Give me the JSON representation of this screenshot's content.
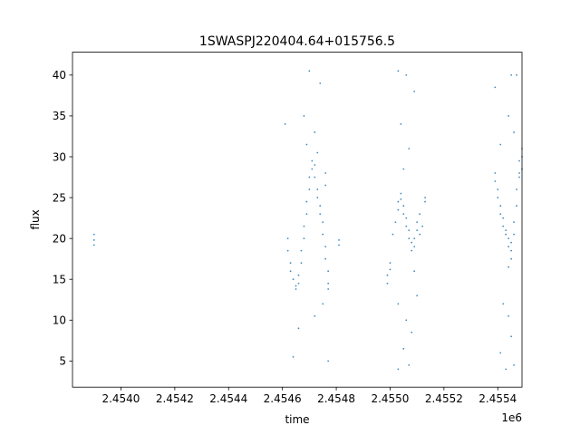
{
  "chart_data": {
    "type": "scatter",
    "title": "1SWASPJ220404.64+015756.5",
    "xlabel": "time",
    "ylabel": "flux",
    "x_offset_label": "1e6",
    "x_scale": 1000000,
    "xlim": [
      2.45382,
      2.45549
    ],
    "ylim": [
      1.8,
      42.8
    ],
    "x_ticks": [
      2.454,
      2.4542,
      2.4544,
      2.4546,
      2.4548,
      2.455,
      2.4552,
      2.4554
    ],
    "x_tick_labels": [
      "2.4540",
      "2.4542",
      "2.4544",
      "2.4546",
      "2.4548",
      "2.4550",
      "2.4552",
      "2.4554"
    ],
    "y_ticks": [
      5,
      10,
      15,
      20,
      25,
      30,
      35,
      40
    ],
    "y_tick_labels": [
      "5",
      "10",
      "15",
      "20",
      "25",
      "30",
      "35",
      "40"
    ],
    "grid": false,
    "legend": "none",
    "marker_color": "#1f77b4",
    "series": [
      {
        "points": [
          {
            "x": 2.4539,
            "y": 20.5
          },
          {
            "x": 2.4539,
            "y": 19.2
          },
          {
            "x": 2.4539,
            "y": 19.8
          },
          {
            "x": 2.45462,
            "y": 20.0
          },
          {
            "x": 2.45462,
            "y": 18.5
          },
          {
            "x": 2.45463,
            "y": 17.0
          },
          {
            "x": 2.45463,
            "y": 16.0
          },
          {
            "x": 2.45464,
            "y": 15.0
          },
          {
            "x": 2.45465,
            "y": 14.2
          },
          {
            "x": 2.45465,
            "y": 13.8
          },
          {
            "x": 2.45466,
            "y": 14.5
          },
          {
            "x": 2.45466,
            "y": 15.5
          },
          {
            "x": 2.45467,
            "y": 17.0
          },
          {
            "x": 2.45467,
            "y": 18.5
          },
          {
            "x": 2.45468,
            "y": 20.0
          },
          {
            "x": 2.45468,
            "y": 21.5
          },
          {
            "x": 2.45469,
            "y": 23.0
          },
          {
            "x": 2.45469,
            "y": 24.5
          },
          {
            "x": 2.4547,
            "y": 26.0
          },
          {
            "x": 2.4547,
            "y": 27.5
          },
          {
            "x": 2.45471,
            "y": 28.5
          },
          {
            "x": 2.45471,
            "y": 29.5
          },
          {
            "x": 2.45472,
            "y": 29.0
          },
          {
            "x": 2.45472,
            "y": 27.5
          },
          {
            "x": 2.45473,
            "y": 26.0
          },
          {
            "x": 2.45473,
            "y": 25.0
          },
          {
            "x": 2.45474,
            "y": 24.0
          },
          {
            "x": 2.45474,
            "y": 23.0
          },
          {
            "x": 2.45475,
            "y": 22.0
          },
          {
            "x": 2.45475,
            "y": 20.5
          },
          {
            "x": 2.45476,
            "y": 19.0
          },
          {
            "x": 2.45476,
            "y": 17.5
          },
          {
            "x": 2.45477,
            "y": 16.0
          },
          {
            "x": 2.45477,
            "y": 14.5
          },
          {
            "x": 2.45477,
            "y": 13.8
          },
          {
            "x": 2.45476,
            "y": 28.0
          },
          {
            "x": 2.45476,
            "y": 26.5
          },
          {
            "x": 2.45481,
            "y": 19.8
          },
          {
            "x": 2.45481,
            "y": 19.2
          },
          {
            "x": 2.4547,
            "y": 40.5
          },
          {
            "x": 2.45474,
            "y": 39.0
          },
          {
            "x": 2.45468,
            "y": 35.0
          },
          {
            "x": 2.45472,
            "y": 33.0
          },
          {
            "x": 2.45461,
            "y": 34.0
          },
          {
            "x": 2.45466,
            "y": 9.0
          },
          {
            "x": 2.45472,
            "y": 10.5
          },
          {
            "x": 2.45475,
            "y": 12.0
          },
          {
            "x": 2.45464,
            "y": 5.5
          },
          {
            "x": 2.45477,
            "y": 5.0
          },
          {
            "x": 2.45469,
            "y": 31.5
          },
          {
            "x": 2.45473,
            "y": 30.5
          },
          {
            "x": 2.45499,
            "y": 15.5
          },
          {
            "x": 2.45499,
            "y": 14.5
          },
          {
            "x": 2.455,
            "y": 17.0
          },
          {
            "x": 2.455,
            "y": 16.2
          },
          {
            "x": 2.45501,
            "y": 20.5
          },
          {
            "x": 2.45502,
            "y": 22.0
          },
          {
            "x": 2.45503,
            "y": 23.5
          },
          {
            "x": 2.45503,
            "y": 24.5
          },
          {
            "x": 2.45504,
            "y": 25.5
          },
          {
            "x": 2.45504,
            "y": 24.8
          },
          {
            "x": 2.45505,
            "y": 24.0
          },
          {
            "x": 2.45505,
            "y": 23.0
          },
          {
            "x": 2.45506,
            "y": 22.5
          },
          {
            "x": 2.45506,
            "y": 21.5
          },
          {
            "x": 2.45507,
            "y": 21.0
          },
          {
            "x": 2.45507,
            "y": 20.0
          },
          {
            "x": 2.45508,
            "y": 19.5
          },
          {
            "x": 2.45508,
            "y": 18.5
          },
          {
            "x": 2.45509,
            "y": 19.0
          },
          {
            "x": 2.45509,
            "y": 20.0
          },
          {
            "x": 2.4551,
            "y": 21.0
          },
          {
            "x": 2.4551,
            "y": 22.0
          },
          {
            "x": 2.45511,
            "y": 23.0
          },
          {
            "x": 2.45511,
            "y": 20.5
          },
          {
            "x": 2.45512,
            "y": 21.5
          },
          {
            "x": 2.45513,
            "y": 24.5
          },
          {
            "x": 2.45513,
            "y": 25.0
          },
          {
            "x": 2.45503,
            "y": 40.5
          },
          {
            "x": 2.45506,
            "y": 40.0
          },
          {
            "x": 2.45509,
            "y": 38.0
          },
          {
            "x": 2.45504,
            "y": 34.0
          },
          {
            "x": 2.45507,
            "y": 31.0
          },
          {
            "x": 2.45505,
            "y": 28.5
          },
          {
            "x": 2.45503,
            "y": 12.0
          },
          {
            "x": 2.45506,
            "y": 10.0
          },
          {
            "x": 2.45508,
            "y": 8.5
          },
          {
            "x": 2.45505,
            "y": 6.5
          },
          {
            "x": 2.45503,
            "y": 4.0
          },
          {
            "x": 2.45507,
            "y": 4.5
          },
          {
            "x": 2.4551,
            "y": 13.0
          },
          {
            "x": 2.45509,
            "y": 16.0
          },
          {
            "x": 2.45539,
            "y": 28.0
          },
          {
            "x": 2.45539,
            "y": 27.0
          },
          {
            "x": 2.4554,
            "y": 26.0
          },
          {
            "x": 2.4554,
            "y": 25.0
          },
          {
            "x": 2.45541,
            "y": 24.0
          },
          {
            "x": 2.45541,
            "y": 23.0
          },
          {
            "x": 2.45542,
            "y": 22.5
          },
          {
            "x": 2.45542,
            "y": 21.5
          },
          {
            "x": 2.45543,
            "y": 21.0
          },
          {
            "x": 2.45543,
            "y": 20.5
          },
          {
            "x": 2.45544,
            "y": 20.0
          },
          {
            "x": 2.45544,
            "y": 19.0
          },
          {
            "x": 2.45545,
            "y": 18.5
          },
          {
            "x": 2.45545,
            "y": 19.5
          },
          {
            "x": 2.45546,
            "y": 20.5
          },
          {
            "x": 2.45546,
            "y": 22.0
          },
          {
            "x": 2.45547,
            "y": 24.0
          },
          {
            "x": 2.45547,
            "y": 26.0
          },
          {
            "x": 2.45548,
            "y": 28.0
          },
          {
            "x": 2.45548,
            "y": 29.5
          },
          {
            "x": 2.45549,
            "y": 31.0
          },
          {
            "x": 2.45549,
            "y": 30.0
          },
          {
            "x": 2.45549,
            "y": 28.5
          },
          {
            "x": 2.45548,
            "y": 27.5
          },
          {
            "x": 2.45545,
            "y": 40.0
          },
          {
            "x": 2.45547,
            "y": 40.0
          },
          {
            "x": 2.45539,
            "y": 38.5
          },
          {
            "x": 2.45544,
            "y": 35.0
          },
          {
            "x": 2.45546,
            "y": 33.0
          },
          {
            "x": 2.45541,
            "y": 31.5
          },
          {
            "x": 2.45542,
            "y": 12.0
          },
          {
            "x": 2.45544,
            "y": 10.5
          },
          {
            "x": 2.45545,
            "y": 8.0
          },
          {
            "x": 2.45541,
            "y": 6.0
          },
          {
            "x": 2.45543,
            "y": 4.0
          },
          {
            "x": 2.45546,
            "y": 4.5
          },
          {
            "x": 2.45544,
            "y": 16.5
          },
          {
            "x": 2.45545,
            "y": 17.5
          }
        ]
      }
    ]
  }
}
